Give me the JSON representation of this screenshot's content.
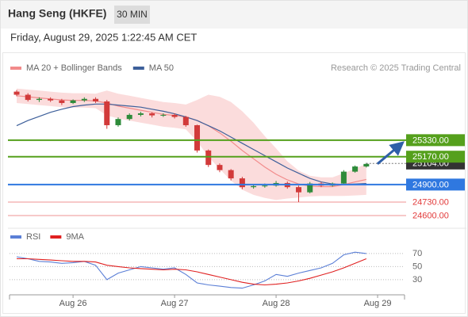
{
  "header": {
    "title": "Hang Seng (HKFE)",
    "interval": "30 MIN",
    "datetime": "Friday, August 29, 2025 1:22:45 AM CET"
  },
  "chart_data": [
    {
      "type": "candlestick",
      "credit": "Research © 2025 Trading Central",
      "categories": [
        null,
        null,
        null,
        null,
        null,
        "Aug 26",
        null,
        null,
        null,
        null,
        null,
        null,
        null,
        null,
        "Aug 27",
        null,
        null,
        null,
        null,
        null,
        null,
        null,
        null,
        "Aug 28",
        null,
        null,
        null,
        null,
        null,
        null,
        null,
        null,
        "Aug 29"
      ],
      "open": [
        25800,
        25770,
        25720,
        25730,
        25715,
        25690,
        25715,
        25730,
        25705,
        25475,
        25535,
        25575,
        25590,
        25570,
        25575,
        25555,
        25475,
        25230,
        25090,
        25040,
        24960,
        24875,
        24885,
        24890,
        24915,
        24875,
        24825,
        24910,
        24890,
        24910,
        25025,
        25075,
        null
      ],
      "high": [
        25815,
        25785,
        25745,
        25745,
        25730,
        25725,
        25745,
        25745,
        25720,
        25550,
        25590,
        25605,
        25600,
        25590,
        25590,
        25565,
        25480,
        25240,
        25105,
        25050,
        24975,
        24905,
        24910,
        24935,
        24930,
        24890,
        24925,
        24925,
        24920,
        25040,
        25085,
        25110,
        null
      ],
      "low": [
        25755,
        25705,
        25700,
        25700,
        25670,
        25680,
        25700,
        25690,
        25440,
        25460,
        25520,
        25560,
        25550,
        25555,
        25540,
        25460,
        25210,
        25070,
        25020,
        24940,
        24855,
        24860,
        24870,
        24880,
        24860,
        24730,
        24815,
        24875,
        24880,
        24900,
        25015,
        25065,
        null
      ],
      "close": [
        25770,
        25720,
        25730,
        25715,
        25690,
        25715,
        25730,
        25705,
        25475,
        25535,
        25575,
        25590,
        25570,
        25575,
        25555,
        25475,
        25230,
        25090,
        25040,
        24960,
        24875,
        24885,
        24890,
        24915,
        24875,
        24825,
        24910,
        24890,
        24910,
        25025,
        25075,
        25100,
        null
      ],
      "up_color": "#2e8b3a",
      "down_color": "#d23a3a",
      "series": [
        {
          "name": "MA 20 + Bollinger Bands",
          "color": "#f28b8b",
          "values": [
            25760,
            25750,
            25740,
            25730,
            25720,
            25715,
            25715,
            25710,
            25690,
            25660,
            25640,
            25620,
            25600,
            25580,
            25570,
            25555,
            25520,
            25470,
            25400,
            25320,
            25230,
            25150,
            25070,
            25000,
            24945,
            24905,
            24885,
            24880,
            24880,
            24900,
            24925,
            24950,
            null
          ],
          "upper": [
            25830,
            25820,
            25810,
            25800,
            25790,
            25785,
            25785,
            25780,
            25810,
            25780,
            25760,
            25740,
            25720,
            25700,
            25690,
            25675,
            25720,
            25770,
            25750,
            25700,
            25610,
            25500,
            25370,
            25250,
            25125,
            25035,
            24985,
            24970,
            24970,
            25010,
            25055,
            25100,
            null
          ],
          "lower": [
            25690,
            25680,
            25670,
            25660,
            25650,
            25645,
            25645,
            25640,
            25570,
            25540,
            25520,
            25500,
            25480,
            25460,
            25450,
            25435,
            25320,
            25170,
            25050,
            24940,
            24850,
            24800,
            24770,
            24750,
            24765,
            24775,
            24785,
            24790,
            24790,
            24790,
            24795,
            24800,
            null
          ]
        },
        {
          "name": "MA 50",
          "color": "#3d5f9a",
          "values": [
            25470,
            25520,
            25560,
            25600,
            25630,
            25655,
            25670,
            25680,
            25680,
            25670,
            25660,
            25650,
            25630,
            25610,
            25585,
            25555,
            25520,
            25470,
            25420,
            25360,
            25300,
            25240,
            25180,
            25120,
            25060,
            25010,
            24960,
            24925,
            24905,
            24900,
            24905,
            24910,
            null
          ]
        }
      ],
      "ylim": [
        24500,
        25920
      ],
      "levels": [
        {
          "value": 25330,
          "label": "25330.00",
          "color": "#55a01c",
          "label_style": "box"
        },
        {
          "value": 25170,
          "label": "25170.00",
          "color": "#55a01c",
          "label_style": "box"
        },
        {
          "value": 24900,
          "label": "24900.00",
          "color": "#2f78e0",
          "label_style": "box"
        },
        {
          "value": 24730,
          "label": "24730.00",
          "color": "#e23a3a",
          "label_style": "text"
        },
        {
          "value": 24600,
          "label": "24600.00",
          "color": "#e23a3a",
          "label_style": "text"
        }
      ],
      "current": {
        "value": 25104,
        "label": "25104.00",
        "color": "#333333"
      }
    },
    {
      "type": "line",
      "series": [
        {
          "name": "RSI",
          "color": "#5b7fd6",
          "values": [
            65,
            62,
            58,
            57,
            55,
            56,
            58,
            52,
            30,
            40,
            45,
            50,
            48,
            46,
            48,
            38,
            25,
            22,
            20,
            18,
            17,
            22,
            28,
            38,
            35,
            40,
            44,
            48,
            55,
            68,
            72,
            70,
            null
          ]
        },
        {
          "name": "9MA",
          "color": "#e02020",
          "values": [
            62,
            62,
            61,
            60,
            59,
            58,
            58,
            57,
            52,
            50,
            48,
            47,
            46,
            45,
            46,
            45,
            42,
            38,
            34,
            30,
            26,
            23,
            22,
            23,
            25,
            28,
            32,
            37,
            42,
            48,
            55,
            62,
            null
          ]
        }
      ],
      "ylim": [
        8,
        82
      ],
      "yticks": [
        70,
        50,
        30
      ],
      "grid": true
    }
  ]
}
